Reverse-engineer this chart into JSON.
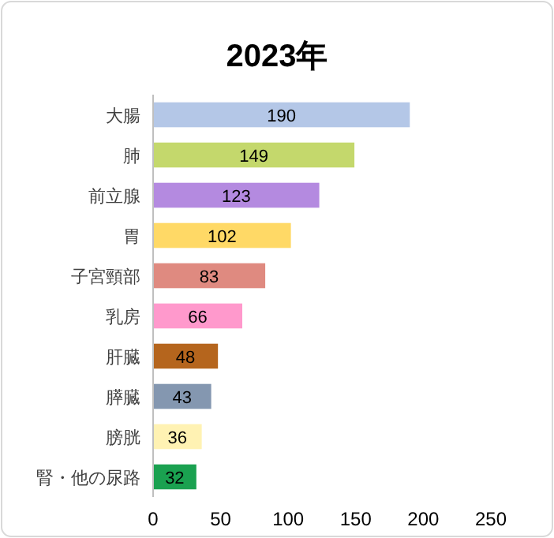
{
  "chart_data": {
    "type": "bar",
    "orientation": "horizontal",
    "title": "2023年",
    "categories": [
      "大腸",
      "肺",
      "前立腺",
      "胃",
      "子宮頸部",
      "乳房",
      "肝臓",
      "膵臓",
      "膀胱",
      "腎・他の尿路"
    ],
    "values": [
      190,
      149,
      123,
      102,
      83,
      66,
      48,
      43,
      36,
      32
    ],
    "colors": [
      "#b4c7e7",
      "#c4d86c",
      "#b48ae0",
      "#ffd966",
      "#df8a80",
      "#ff99cc",
      "#b5651d",
      "#8497b0",
      "#fff2b3",
      "#1aa150"
    ],
    "xlim": [
      0,
      250
    ],
    "xticks": [
      0,
      50,
      100,
      150,
      200,
      250
    ],
    "data_labels": true
  }
}
